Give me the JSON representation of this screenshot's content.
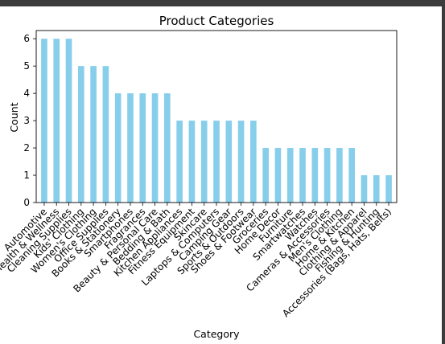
{
  "chart_data": {
    "type": "bar",
    "title": "Product Categories",
    "xlabel": "Category",
    "ylabel": "Count",
    "ylim": [
      0,
      6.3
    ],
    "yticks": [
      0,
      1,
      2,
      3,
      4,
      5,
      6
    ],
    "bar_color": "#87ceeb",
    "categories": [
      "Automotive",
      "Health & Wellness",
      "Cleaning Supplies",
      "Kids' Clothing",
      "Women's Clothing",
      "Office Supplies",
      "Books & Stationery",
      "Smartphones",
      "Fragrances",
      "Beauty & Personal Care",
      "Bedding & Bath",
      "Kitchen Appliances",
      "Fitness Equipment",
      "Skincare",
      "Laptops & Computers",
      "Camping Gear",
      "Sports & Outdoors",
      "Shoes & Footwear",
      "Groceries",
      "Home Decor",
      "Furniture",
      "Smartwatches",
      "Watches",
      "Cameras & Accessories",
      "Men's Clothing",
      "Home & Kitchen",
      "Clothing & Apparel",
      "Fishing & Hunting",
      "Accessories (Bags, Hats, Belts)"
    ],
    "values": [
      6,
      6,
      6,
      5,
      5,
      5,
      4,
      4,
      4,
      4,
      4,
      3,
      3,
      3,
      3,
      3,
      3,
      3,
      2,
      2,
      2,
      2,
      2,
      2,
      2,
      2,
      1,
      1,
      1
    ]
  }
}
